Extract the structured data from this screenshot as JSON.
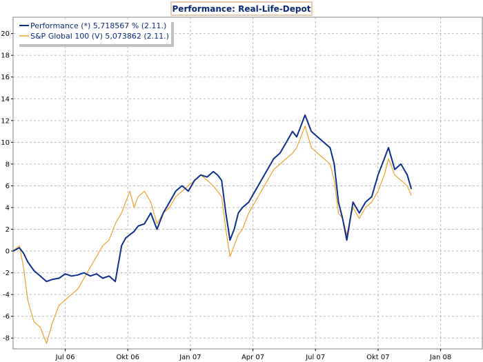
{
  "chart_data": {
    "type": "line",
    "title": "Performance: Real-Life-Depot",
    "xlabel": "",
    "ylabel": "",
    "ylim": [
      -9,
      21.5
    ],
    "xlim": [
      0,
      22.5
    ],
    "yticks": [
      -8,
      -6,
      -4,
      -2,
      0,
      2,
      4,
      6,
      8,
      10,
      12,
      14,
      16,
      18,
      20
    ],
    "xticks": [
      {
        "label": "Jul 06",
        "x": 2.5
      },
      {
        "label": "Okt 06",
        "x": 5.5
      },
      {
        "label": "Jan 07",
        "x": 8.5
      },
      {
        "label": "Apr 07",
        "x": 11.5
      },
      {
        "label": "Jul 07",
        "x": 14.5
      },
      {
        "label": "Okt 07",
        "x": 17.5
      },
      {
        "label": "Jan 08",
        "x": 20.5
      }
    ],
    "grid": true,
    "legend_position": "top-left",
    "series": [
      {
        "name": "Performance",
        "legend": "Performance (*) 5,718567 % (2.11.)",
        "color": "#0b2d8c",
        "x": [
          0.0,
          0.3,
          0.5,
          0.7,
          1.0,
          1.3,
          1.6,
          1.9,
          2.2,
          2.5,
          2.8,
          3.1,
          3.4,
          3.7,
          4.0,
          4.3,
          4.6,
          4.9,
          5.2,
          5.4,
          5.6,
          5.8,
          6.0,
          6.3,
          6.6,
          6.9,
          7.2,
          7.5,
          7.8,
          8.1,
          8.4,
          8.7,
          9.0,
          9.3,
          9.6,
          9.8,
          10.0,
          10.2,
          10.4,
          10.6,
          10.8,
          11.0,
          11.3,
          11.6,
          11.9,
          12.2,
          12.5,
          12.8,
          13.1,
          13.4,
          13.6,
          13.8,
          14.0,
          14.3,
          14.6,
          14.9,
          15.2,
          15.4,
          15.6,
          15.8,
          16.0,
          16.3,
          16.6,
          16.9,
          17.2,
          17.5,
          17.8,
          18.0,
          18.3,
          18.6,
          18.9,
          19.1
        ],
        "values": [
          0.0,
          0.3,
          -0.2,
          -1.0,
          -1.8,
          -2.3,
          -2.8,
          -2.6,
          -2.5,
          -2.1,
          -2.3,
          -2.2,
          -2.0,
          -2.3,
          -2.1,
          -2.5,
          -2.3,
          -2.8,
          0.5,
          1.2,
          1.5,
          1.8,
          2.3,
          2.5,
          3.5,
          2.0,
          3.5,
          4.5,
          5.5,
          6.0,
          5.5,
          6.5,
          7.0,
          6.8,
          7.3,
          7.0,
          6.5,
          3.5,
          1.0,
          2.0,
          3.5,
          4.0,
          4.5,
          5.5,
          6.5,
          7.5,
          8.5,
          9.0,
          10.0,
          11.0,
          10.5,
          11.5,
          12.5,
          11.0,
          10.5,
          10.0,
          9.5,
          8.0,
          4.5,
          3.0,
          1.0,
          4.5,
          3.5,
          4.5,
          5.0,
          7.0,
          8.5,
          9.5,
          7.5,
          8.0,
          7.0,
          5.7
        ]
      },
      {
        "name": "S&P Global 100",
        "legend": "S&P Global 100 (V) 5,073862 (2.11.)",
        "color": "#f0a028",
        "x": [
          0.0,
          0.3,
          0.5,
          0.7,
          1.0,
          1.3,
          1.6,
          1.9,
          2.2,
          2.5,
          2.8,
          3.1,
          3.4,
          3.7,
          4.0,
          4.3,
          4.6,
          4.9,
          5.2,
          5.4,
          5.6,
          5.8,
          6.0,
          6.3,
          6.6,
          6.9,
          7.2,
          7.5,
          7.8,
          8.1,
          8.4,
          8.7,
          9.0,
          9.3,
          9.6,
          9.8,
          10.0,
          10.2,
          10.4,
          10.6,
          10.8,
          11.0,
          11.3,
          11.6,
          11.9,
          12.2,
          12.5,
          12.8,
          13.1,
          13.4,
          13.6,
          13.8,
          14.0,
          14.3,
          14.6,
          14.9,
          15.2,
          15.4,
          15.6,
          15.8,
          16.0,
          16.3,
          16.6,
          16.9,
          17.2,
          17.5,
          17.8,
          18.0,
          18.3,
          18.6,
          18.9,
          19.1
        ],
        "values": [
          0.0,
          0.5,
          -1.5,
          -4.5,
          -6.5,
          -7.0,
          -8.5,
          -6.5,
          -5.0,
          -4.5,
          -4.0,
          -3.5,
          -2.5,
          -1.5,
          -0.5,
          0.5,
          1.0,
          2.5,
          3.5,
          4.5,
          5.5,
          4.0,
          5.0,
          5.5,
          4.5,
          2.5,
          3.5,
          4.0,
          5.0,
          5.5,
          6.0,
          6.5,
          7.0,
          6.5,
          6.0,
          5.5,
          5.0,
          2.0,
          -0.5,
          0.5,
          1.5,
          2.0,
          3.5,
          4.5,
          5.5,
          6.5,
          7.5,
          8.0,
          8.5,
          9.0,
          9.5,
          10.5,
          11.5,
          9.5,
          9.0,
          8.5,
          8.0,
          6.5,
          3.5,
          3.0,
          1.5,
          4.0,
          3.0,
          4.0,
          4.5,
          5.5,
          7.0,
          8.5,
          7.0,
          6.5,
          6.0,
          5.1
        ]
      }
    ]
  }
}
